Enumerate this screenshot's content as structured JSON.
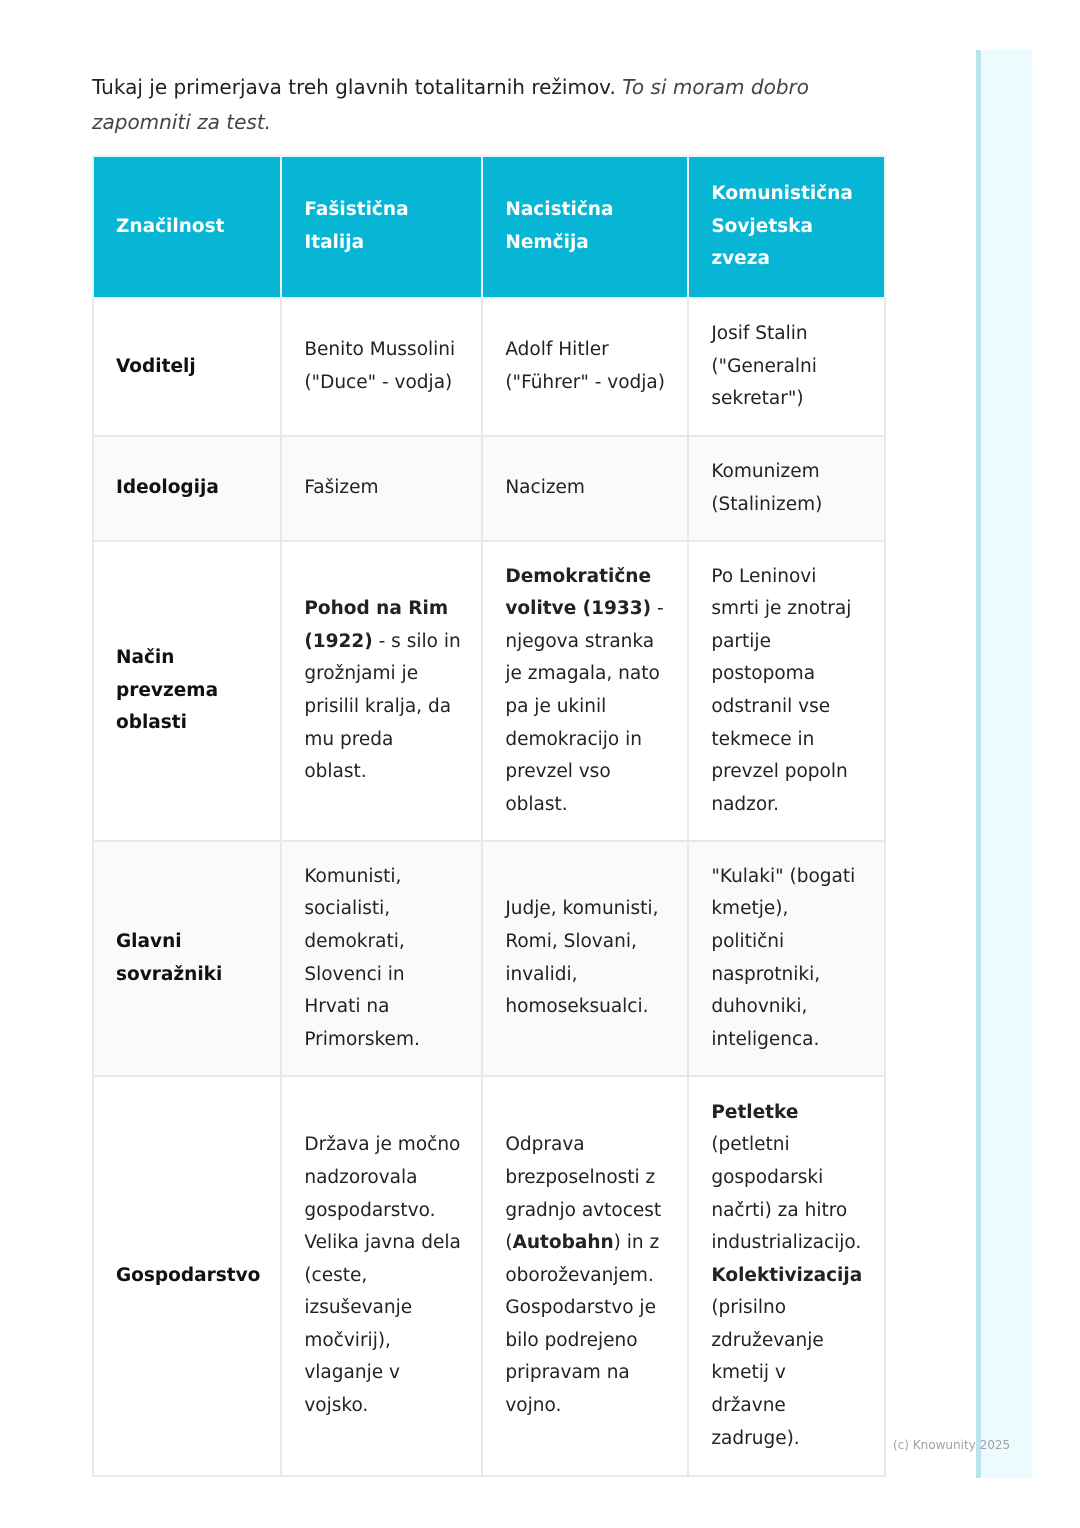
{
  "intro": {
    "normal": "Tukaj je primerjava treh glavnih totalitarnih režimov. ",
    "italic": "To si moram dobro zapomniti za test."
  },
  "colors": {
    "header_bg": "#06b6d4",
    "sidebar": "#ecfbfe"
  },
  "table": {
    "headers": [
      "Značilnost",
      "Fašistična Italija",
      "Nacistična Nemčija",
      "Komunistična Sovjetska zveza"
    ],
    "rows": [
      {
        "label": "Voditelj",
        "cells": [
          [
            {
              "t": "Benito Mussolini (\"Duce\" - vodja)"
            }
          ],
          [
            {
              "t": "Adolf Hitler (\"Führer\" - vodja)"
            }
          ],
          [
            {
              "t": "Josif Stalin (\"Generalni sekretar\")"
            }
          ]
        ]
      },
      {
        "label": "Ideologija",
        "cells": [
          [
            {
              "t": "Fašizem"
            }
          ],
          [
            {
              "t": "Nacizem"
            }
          ],
          [
            {
              "t": "Komunizem (Stalinizem)"
            }
          ]
        ]
      },
      {
        "label": "Način prevzema oblasti",
        "cells": [
          [
            {
              "t": "Pohod na Rim (1922)",
              "b": true
            },
            {
              "t": " - s silo in grožnjami je prisilil kralja, da mu preda oblast."
            }
          ],
          [
            {
              "t": "Demokratične volitve (1933)",
              "b": true
            },
            {
              "t": " - njegova stranka je zmagala, nato pa je ukinil demokracijo in prevzel vso oblast."
            }
          ],
          [
            {
              "t": "Po Leninovi smrti je znotraj partije postopoma odstranil vse tekmece in prevzel popoln nadzor."
            }
          ]
        ]
      },
      {
        "label": "Glavni sovražniki",
        "cells": [
          [
            {
              "t": "Komunisti, socialisti, demokrati, Slovenci in Hrvati na Primorskem."
            }
          ],
          [
            {
              "t": "Judje, komunisti, Romi, Slovani, invalidi, homoseksualci."
            }
          ],
          [
            {
              "t": "\"Kulaki\" (bogati kmetje), politični nasprotniki, duhovniki, inteligenca."
            }
          ]
        ]
      },
      {
        "label": "Gospodarstvo",
        "cells": [
          [
            {
              "t": "Država je močno nadzorovala gospodarstvo. Velika javna dela (ceste, izsuševanje močvirij), vlaganje v vojsko."
            }
          ],
          [
            {
              "t": "Odprava brezposelnosti z gradnjo avtocest ("
            },
            {
              "t": "Autobahn",
              "b": true
            },
            {
              "t": ") in z oboroževanjem. Gospodarstvo je bilo podrejeno pripravam na vojno."
            }
          ],
          [
            {
              "t": "Petletke",
              "b": true
            },
            {
              "t": " (petletni gospodarski načrti) za hitro industrializacijo. "
            },
            {
              "t": "Kolektivizacija",
              "b": true
            },
            {
              "t": " (prisilno združevanje kmetij v državne zadruge)."
            }
          ]
        ]
      }
    ]
  },
  "watermark": "(c) Knowunity 2025"
}
